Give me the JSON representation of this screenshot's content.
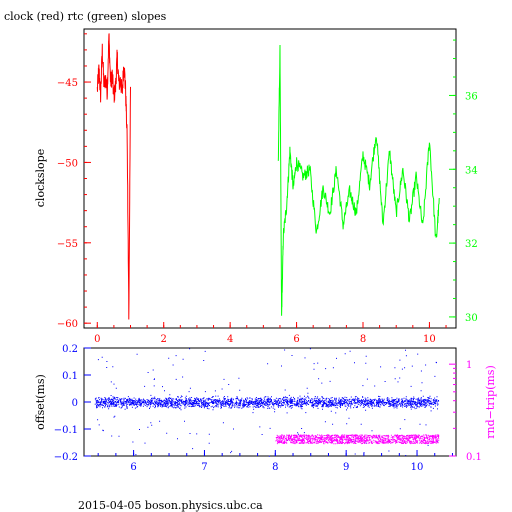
{
  "title": "clock (red) rtc (green) slopes",
  "footer": "2015-04-05  boson.physics.ubc.ca",
  "colors": {
    "clock": "#ff0000",
    "rtc": "#00ff00",
    "offset": "#0000ff",
    "rndtrip": "#ff00ff",
    "axis": "#000000"
  },
  "chart_data": [
    {
      "type": "line",
      "title": "clock (red) rtc (green) slopes",
      "ylabel": "clockslope",
      "xlim": [
        -0.4,
        10.8
      ],
      "ylim": [
        -60.3,
        -41.7
      ],
      "y2lim": [
        29.7,
        37.8
      ],
      "x_ticks": [
        "0",
        "2",
        "4",
        "6",
        "8",
        "10"
      ],
      "y_ticks": [
        "-45",
        "-50",
        "-55",
        "-60"
      ],
      "y2_ticks": [
        "30",
        "32",
        "34",
        "36"
      ],
      "series": [
        {
          "name": "clock",
          "axis": "left",
          "x": [
            0.0,
            0.05,
            0.1,
            0.15,
            0.2,
            0.25,
            0.3,
            0.35,
            0.4,
            0.45,
            0.5,
            0.55,
            0.6,
            0.65,
            0.7,
            0.75,
            0.8,
            0.85,
            0.9,
            0.95,
            1.0
          ],
          "y": [
            -45.5,
            -44.2,
            -45.8,
            -43.0,
            -45.2,
            -44.8,
            -45.6,
            -42.1,
            -45.0,
            -44.6,
            -45.9,
            -45.3,
            -43.4,
            -45.1,
            -44.9,
            -45.7,
            -43.8,
            -45.4,
            -48.5,
            -59.5,
            -45.3
          ]
        },
        {
          "name": "rtc",
          "axis": "right",
          "x": [
            5.45,
            5.5,
            5.55,
            5.6,
            5.7,
            5.8,
            5.9,
            6.0,
            6.2,
            6.4,
            6.6,
            6.8,
            7.0,
            7.2,
            7.4,
            7.6,
            7.8,
            8.0,
            8.2,
            8.4,
            8.6,
            8.8,
            9.0,
            9.2,
            9.4,
            9.6,
            9.8,
            10.0,
            10.2,
            10.3
          ],
          "y": [
            34.2,
            37.2,
            30.0,
            32.2,
            33.0,
            34.5,
            33.5,
            34.2,
            33.8,
            34.0,
            32.3,
            33.5,
            32.8,
            34.0,
            32.5,
            33.4,
            32.8,
            34.4,
            33.6,
            35.0,
            32.5,
            34.5,
            32.8,
            34.0,
            32.6,
            33.8,
            32.4,
            34.8,
            32.0,
            33.2
          ]
        }
      ]
    },
    {
      "type": "scatter",
      "ylabel": "offset(ms)",
      "y2label": "rnd−trip(ms)",
      "xlim": [
        5.3,
        10.55
      ],
      "ylim": [
        -0.2,
        0.2
      ],
      "y2lim": [
        0.1,
        1.5
      ],
      "y2scale": "log",
      "x_ticks": [
        "6",
        "7",
        "8",
        "9",
        "10"
      ],
      "y_ticks": [
        "0.2",
        "0.1",
        "0",
        "−0.1",
        "−0.2"
      ],
      "y2_ticks": [
        "1",
        "0.1"
      ],
      "series": [
        {
          "name": "offset",
          "axis": "left",
          "x_range": [
            5.45,
            10.3
          ],
          "center": 0.0,
          "spread": 0.012
        },
        {
          "name": "rnd-trip",
          "axis": "right",
          "x_range": [
            8.0,
            10.3
          ],
          "center": 0.155
        }
      ]
    }
  ]
}
